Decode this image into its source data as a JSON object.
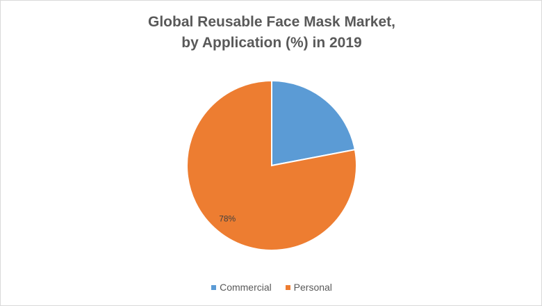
{
  "chart_data": {
    "type": "pie",
    "title_lines": [
      "Global Reusable Face Mask Market,",
      "by Application (%) in 2019"
    ],
    "categories": [
      "Commercial",
      "Personal"
    ],
    "values": [
      22,
      78
    ],
    "colors": [
      "#5b9bd5",
      "#ed7d31"
    ],
    "data_labels": [
      "",
      "78%"
    ],
    "legend_position": "bottom"
  }
}
